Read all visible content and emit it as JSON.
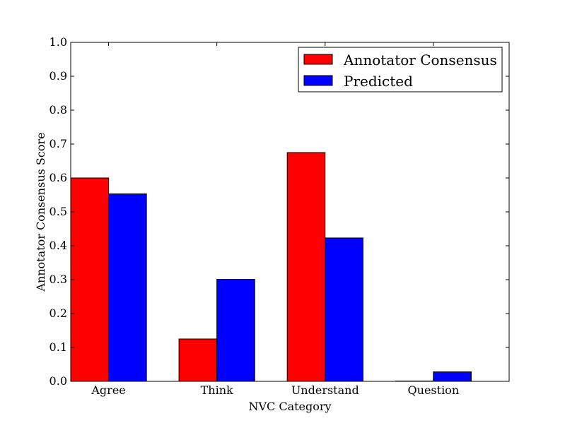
{
  "chart_data": {
    "type": "bar",
    "title": "",
    "xlabel": "NVC Category",
    "ylabel": "Annotator Consensus Score",
    "categories": [
      "Agree",
      "Think",
      "Understand",
      "Question"
    ],
    "series": [
      {
        "name": "Annotator Consensus",
        "color": "#ff0000",
        "values": [
          0.6,
          0.125,
          0.675,
          0.001
        ]
      },
      {
        "name": "Predicted",
        "color": "#0000ff",
        "values": [
          0.553,
          0.301,
          0.423,
          0.028
        ]
      }
    ],
    "ylim": [
      0,
      1.0
    ],
    "yticks": [
      "0.0",
      "0.1",
      "0.2",
      "0.3",
      "0.4",
      "0.5",
      "0.6",
      "0.7",
      "0.8",
      "0.9",
      "1.0"
    ],
    "legend_position": "top-right",
    "grid": false
  }
}
